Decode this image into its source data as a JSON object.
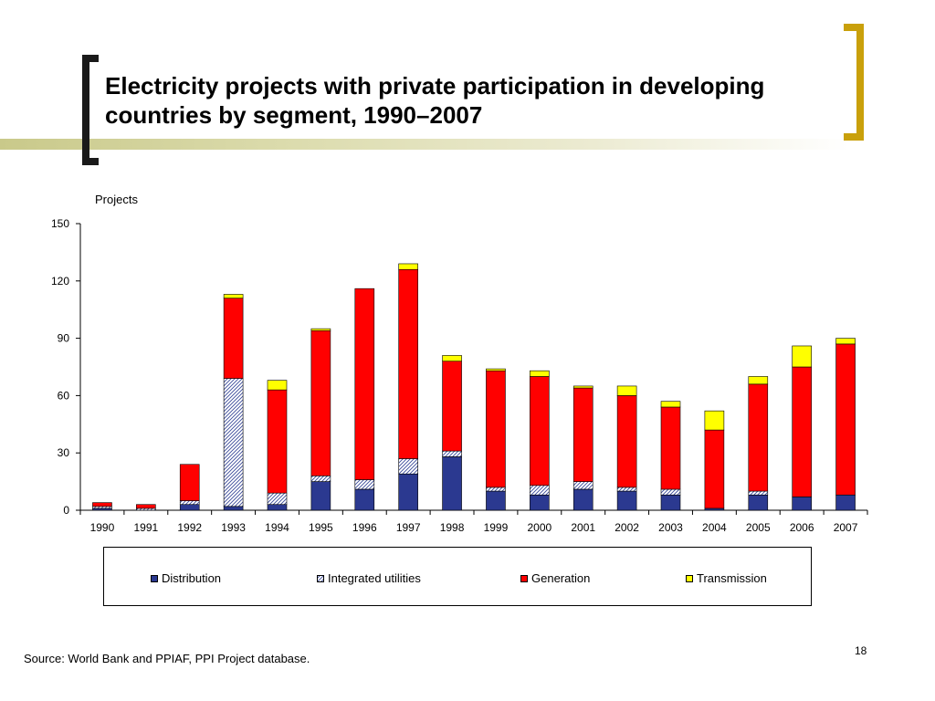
{
  "slide": {
    "title": "Electricity projects with private participation in developing countries by segment, 1990–2007",
    "source": "Source: World Bank and PPIAF, PPI Project database.",
    "page_number": "18"
  },
  "colors": {
    "distribution": "#2b3990",
    "integrated_utilities_hatch": "#3a4a9a",
    "generation": "#ff0000",
    "transmission": "#ffff00",
    "left_bracket": "#1a1a1a",
    "right_bracket": "#c9a00b"
  },
  "chart_data": {
    "type": "bar",
    "stacked": true,
    "ylabel": "Projects",
    "ylim": [
      0,
      150
    ],
    "yticks": [
      "0",
      "30",
      "60",
      "90",
      "120",
      "150"
    ],
    "legend_position": "bottom",
    "categories": [
      "1990",
      "1991",
      "1992",
      "1993",
      "1994",
      "1995",
      "1996",
      "1997",
      "1998",
      "1999",
      "2000",
      "2001",
      "2002",
      "2003",
      "2004",
      "2005",
      "2006",
      "2007"
    ],
    "series": [
      {
        "name": "Distribution",
        "key": "distribution",
        "values": [
          1,
          0,
          3,
          2,
          3,
          15,
          11,
          19,
          28,
          10,
          8,
          11,
          10,
          8,
          1,
          8,
          7,
          8
        ]
      },
      {
        "name": "Integrated utilities",
        "key": "integrated_utilities",
        "values": [
          1,
          1,
          2,
          67,
          6,
          3,
          5,
          8,
          3,
          2,
          5,
          4,
          2,
          3,
          0,
          2,
          0,
          0
        ]
      },
      {
        "name": "Generation",
        "key": "generation",
        "values": [
          2,
          2,
          19,
          42,
          54,
          76,
          100,
          99,
          47,
          61,
          57,
          49,
          48,
          43,
          41,
          56,
          68,
          79
        ]
      },
      {
        "name": "Transmission",
        "key": "transmission",
        "values": [
          0,
          0,
          0,
          2,
          5,
          1,
          0,
          3,
          3,
          1,
          3,
          1,
          5,
          3,
          10,
          4,
          11,
          3
        ]
      }
    ]
  }
}
